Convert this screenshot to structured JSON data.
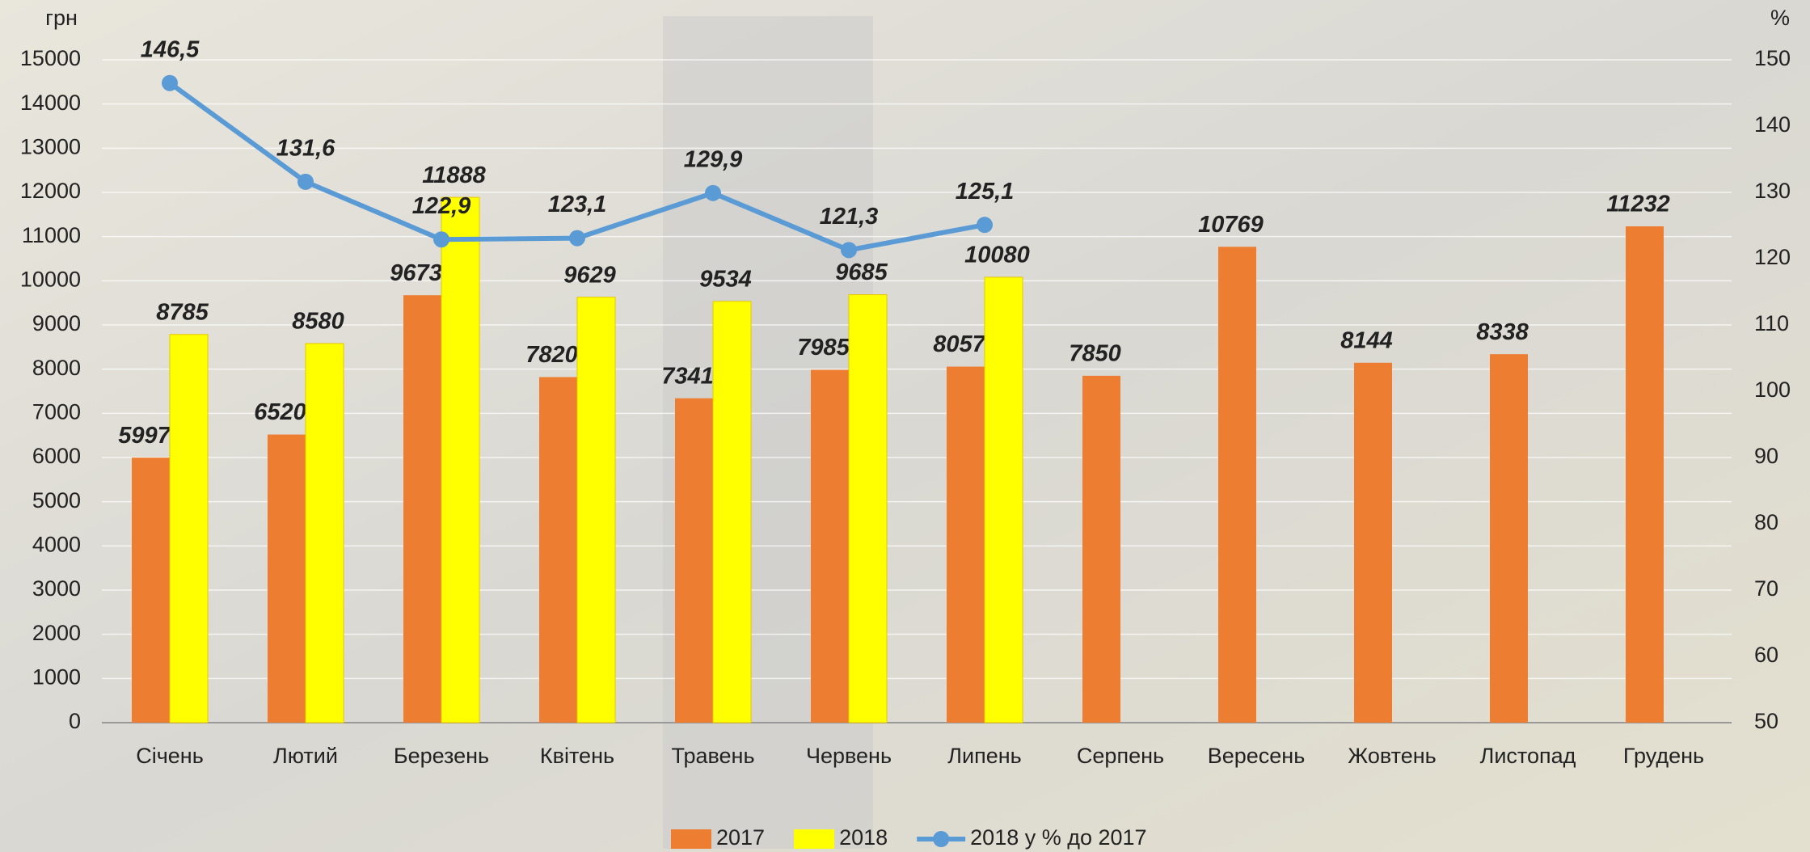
{
  "chart_data": {
    "type": "bar",
    "y_unit": "грн",
    "y2_unit": "%",
    "categories": [
      "Січень",
      "Лютий",
      "Березень",
      "Квітень",
      "Травень",
      "Червень",
      "Липень",
      "Серпень",
      "Вересень",
      "Жовтень",
      "Листопад",
      "Грудень"
    ],
    "series": [
      {
        "name": "2017",
        "type": "bar",
        "color": "#ed7d31",
        "values": [
          5997,
          6520,
          9673,
          7820,
          7341,
          7985,
          8057,
          7850,
          10769,
          8144,
          8338,
          11232
        ]
      },
      {
        "name": "2018",
        "type": "bar",
        "color": "#ffff00",
        "values": [
          8785,
          8580,
          11888,
          9629,
          9534,
          9685,
          10080,
          null,
          null,
          null,
          null,
          null
        ]
      },
      {
        "name": "2018 у % до 2017",
        "type": "line",
        "axis": "y2",
        "color": "#5b9bd5",
        "values": [
          146.5,
          131.6,
          122.9,
          123.1,
          129.9,
          121.3,
          125.1,
          null,
          null,
          null,
          null,
          null
        ],
        "value_labels": [
          "146,5",
          "131,6",
          "122,9",
          "123,1",
          "129,9",
          "121,3",
          "125,1",
          null,
          null,
          null,
          null,
          null
        ]
      }
    ],
    "ylim": [
      0,
      15000
    ],
    "yticks": [
      0,
      1000,
      2000,
      3000,
      4000,
      5000,
      6000,
      7000,
      8000,
      9000,
      10000,
      11000,
      12000,
      13000,
      14000,
      15000
    ],
    "y2lim": [
      50,
      150
    ],
    "y2ticks": [
      50,
      60,
      70,
      80,
      90,
      100,
      110,
      120,
      130,
      140,
      150
    ],
    "grid": true,
    "legend": "bottom"
  }
}
